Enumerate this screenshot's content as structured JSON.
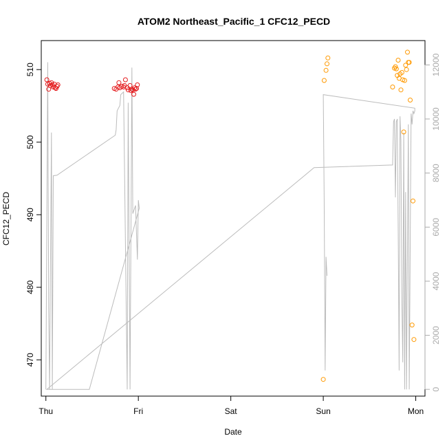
{
  "chart_data": {
    "type": "scatter",
    "title": "ATOM2 Northeast_Pacific_1 CFC12_PECD",
    "xlabel": "Date",
    "ylabel": "CFC12_PECD",
    "x_ticks": [
      "Thu",
      "Fri",
      "Sat",
      "Sun",
      "Mon"
    ],
    "xlim": [
      -0.05,
      4.1
    ],
    "ylim": [
      465,
      514
    ],
    "y_ticks": [
      470,
      480,
      490,
      500,
      510
    ],
    "y2lim": [
      -250,
      12900
    ],
    "y2_ticks": [
      0,
      2000,
      4000,
      6000,
      8000,
      10000,
      12000
    ],
    "grid": false,
    "colors": {
      "series_red": "#e41a1c",
      "series_orange": "#ff9900",
      "secondary_line": "#bbbbbb"
    },
    "series": [
      {
        "points": [
          [
            0.01,
            508.6
          ],
          [
            0.02,
            508.0
          ],
          [
            0.03,
            507.3
          ],
          [
            0.04,
            508.1
          ],
          [
            0.05,
            507.8
          ],
          [
            0.06,
            508.2
          ],
          [
            0.07,
            507.9
          ],
          [
            0.08,
            507.6
          ],
          [
            0.09,
            508.0
          ],
          [
            0.1,
            507.5
          ],
          [
            0.11,
            507.4
          ],
          [
            0.12,
            507.7
          ],
          [
            0.13,
            507.9
          ],
          [
            0.74,
            507.4
          ],
          [
            0.76,
            507.3
          ],
          [
            0.78,
            507.6
          ],
          [
            0.79,
            508.2
          ],
          [
            0.8,
            507.5
          ],
          [
            0.82,
            507.7
          ],
          [
            0.84,
            507.6
          ],
          [
            0.85,
            507.8
          ],
          [
            0.86,
            508.6
          ],
          [
            0.88,
            507.5
          ],
          [
            0.89,
            507.2
          ],
          [
            0.91,
            507.8
          ],
          [
            0.92,
            507.1
          ],
          [
            0.93,
            507.3
          ],
          [
            0.94,
            507.2
          ],
          [
            0.95,
            506.6
          ],
          [
            0.96,
            507.5
          ],
          [
            0.97,
            507.3
          ],
          [
            0.98,
            507.4
          ],
          [
            0.99,
            507.9
          ]
        ]
      },
      {
        "points": [
          [
            3.0,
            467.3
          ],
          [
            3.01,
            508.5
          ],
          [
            3.03,
            509.9
          ],
          [
            3.04,
            510.8
          ],
          [
            3.05,
            511.6
          ],
          [
            3.75,
            507.6
          ],
          [
            3.77,
            510.2
          ],
          [
            3.78,
            510.4
          ],
          [
            3.79,
            510.1
          ],
          [
            3.8,
            509.2
          ],
          [
            3.81,
            511.3
          ],
          [
            3.82,
            508.8
          ],
          [
            3.83,
            509.4
          ],
          [
            3.84,
            507.2
          ],
          [
            3.85,
            509.6
          ],
          [
            3.86,
            508.6
          ],
          [
            3.87,
            501.4
          ],
          [
            3.88,
            508.5
          ],
          [
            3.89,
            510.6
          ],
          [
            3.9,
            510.0
          ],
          [
            3.91,
            512.4
          ],
          [
            3.92,
            511.0
          ],
          [
            3.93,
            511.0
          ],
          [
            3.94,
            505.8
          ],
          [
            3.96,
            474.8
          ],
          [
            3.97,
            491.9
          ],
          [
            3.98,
            472.8
          ]
        ]
      }
    ],
    "secondary_line": {
      "points": [
        [
          0.0,
          0
        ],
        [
          0.02,
          12100
        ],
        [
          0.03,
          3000
        ],
        [
          0.04,
          0
        ],
        [
          0.06,
          9500
        ],
        [
          0.07,
          0
        ],
        [
          0.08,
          7900
        ],
        [
          0.12,
          7920
        ],
        [
          0.75,
          9400
        ],
        [
          0.76,
          9600
        ],
        [
          0.77,
          10300
        ],
        [
          0.8,
          10500
        ],
        [
          0.81,
          10900
        ],
        [
          0.84,
          11000
        ],
        [
          0.88,
          0
        ],
        [
          0.89,
          10600
        ],
        [
          0.91,
          0
        ],
        [
          0.93,
          11900
        ],
        [
          0.94,
          6500
        ],
        [
          0.97,
          6800
        ],
        [
          0.99,
          4800
        ],
        [
          1.0,
          7000
        ],
        [
          1.01,
          6700
        ],
        [
          0.47,
          0
        ],
        [
          0.01,
          0
        ],
        [
          2.9,
          8200
        ],
        [
          3.75,
          8300
        ],
        [
          3.76,
          9900
        ],
        [
          3.77,
          10000
        ],
        [
          3.78,
          7100
        ],
        [
          3.79,
          9900
        ],
        [
          3.8,
          10000
        ],
        [
          3.81,
          6000
        ],
        [
          3.82,
          700
        ],
        [
          3.83,
          10100
        ],
        [
          3.84,
          9200
        ],
        [
          3.85,
          3200
        ],
        [
          3.86,
          1000
        ],
        [
          3.87,
          9500
        ],
        [
          3.88,
          0
        ],
        [
          3.89,
          7300
        ],
        [
          3.9,
          0
        ],
        [
          3.92,
          9800
        ],
        [
          3.93,
          0
        ],
        [
          3.95,
          10200
        ],
        [
          3.96,
          9800
        ],
        [
          3.97,
          10300
        ],
        [
          3.98,
          10200
        ],
        [
          3.99,
          10300
        ],
        [
          3.99,
          10400
        ],
        [
          3.0,
          10900
        ],
        [
          3.01,
          7000
        ],
        [
          3.02,
          700
        ],
        [
          3.03,
          4900
        ],
        [
          3.04,
          4200
        ]
      ]
    }
  }
}
